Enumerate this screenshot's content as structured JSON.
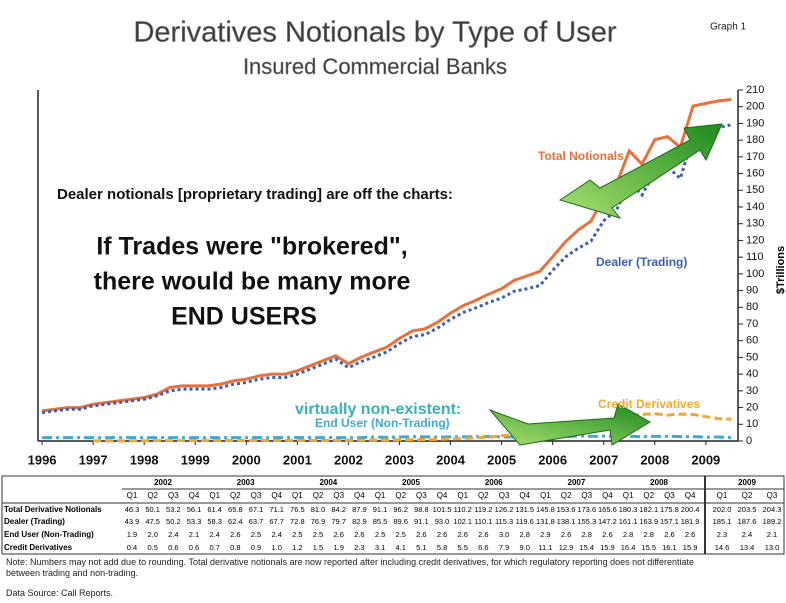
{
  "chart_data": {
    "type": "line",
    "title": "Derivatives Notionals by Type of User",
    "subtitle": "Insured Commercial Banks",
    "corner_label": "Graph 1",
    "y_label": "$Trillions",
    "annotations": [
      "Dealer notionals [proprietary trading] are off the charts:",
      "If Trades were \"brokered\",",
      "there would be many more",
      "END USERS",
      "virtually non-existent:"
    ],
    "x": [
      1996,
      1996.25,
      1996.5,
      1996.75,
      1997,
      1997.25,
      1997.5,
      1997.75,
      1998,
      1998.25,
      1998.5,
      1998.75,
      1999,
      1999.25,
      1999.5,
      1999.75,
      2000,
      2000.25,
      2000.5,
      2000.75,
      2001,
      2001.25,
      2001.5,
      2001.75,
      2002,
      2002.25,
      2002.5,
      2002.75,
      2003,
      2003.25,
      2003.5,
      2003.75,
      2004,
      2004.25,
      2004.5,
      2004.75,
      2005,
      2005.25,
      2005.5,
      2005.75,
      2006,
      2006.25,
      2006.5,
      2006.75,
      2007,
      2007.25,
      2007.5,
      2007.75,
      2008,
      2008.25,
      2008.5,
      2008.75,
      2009,
      2009.25,
      2009.5
    ],
    "series": [
      {
        "name": "Total Notionals",
        "color": "#e8703a",
        "dash": "none",
        "values": [
          18,
          19,
          20,
          20,
          22,
          23,
          24,
          25,
          26,
          28,
          32,
          33,
          33,
          33,
          34,
          36,
          37,
          39,
          40,
          40,
          42,
          45,
          48,
          51,
          46.3,
          50.1,
          53.2,
          56.1,
          61.4,
          65.8,
          67.1,
          71.1,
          76.5,
          81.0,
          84.2,
          87.9,
          91.1,
          96.2,
          98.8,
          101.5,
          110.2,
          119.2,
          126.2,
          131.5,
          145.8,
          153.6,
          173.6,
          165.6,
          180.3,
          182.1,
          175.8,
          200.4,
          202.0,
          203.5,
          204.3
        ]
      },
      {
        "name": "Dealer (Trading)",
        "color": "#3a5fb0",
        "dash": "3 3",
        "values": [
          17,
          18,
          19,
          19,
          21,
          22,
          23,
          24,
          25,
          27,
          30,
          31,
          31,
          31,
          32,
          34,
          35,
          37,
          38,
          38,
          40,
          43,
          46,
          49,
          43.9,
          47.5,
          50.2,
          53.3,
          58.3,
          62.4,
          63.7,
          67.7,
          72.8,
          76.9,
          79.7,
          82.9,
          85.5,
          89.6,
          91.1,
          93.0,
          102.1,
          110.1,
          115.3,
          119.6,
          131.8,
          138.1,
          155.3,
          147.2,
          161.1,
          163.9,
          157.1,
          181.9,
          185.1,
          187.6,
          189.2
        ]
      },
      {
        "name": "End User (Non-Trading)",
        "color": "#3fa9d6",
        "dash": "10 4 3 4",
        "values": [
          2,
          2,
          2,
          2,
          2,
          2,
          2,
          2,
          2,
          2,
          2,
          2,
          2,
          2,
          2,
          2,
          2,
          2,
          2,
          2,
          2,
          2,
          2,
          2,
          1.9,
          2.0,
          2.4,
          2.1,
          2.4,
          2.6,
          2.5,
          2.4,
          2.5,
          2.5,
          2.6,
          2.6,
          2.5,
          2.5,
          2.6,
          2.6,
          2.6,
          2.6,
          3.0,
          2.8,
          2.9,
          2.6,
          2.8,
          2.6,
          2.8,
          2.8,
          2.6,
          2.6,
          2.3,
          2.4,
          2.1
        ]
      },
      {
        "name": "Credit Derivatives",
        "color": "#f0a830",
        "dash": "8 4",
        "values": [
          null,
          null,
          null,
          null,
          0.1,
          0.1,
          0.1,
          0.1,
          0.1,
          0.2,
          0.2,
          0.2,
          0.2,
          0.2,
          0.3,
          0.3,
          0.3,
          0.3,
          0.4,
          0.4,
          0.4,
          0.4,
          0.4,
          0.4,
          0.4,
          0.5,
          0.6,
          0.6,
          0.7,
          0.8,
          0.9,
          1.0,
          1.2,
          1.5,
          1.9,
          2.3,
          3.1,
          4.1,
          5.1,
          5.8,
          5.5,
          6.6,
          7.9,
          9.0,
          11.1,
          12.9,
          15.4,
          15.9,
          16.4,
          15.5,
          16.1,
          15.9,
          14.6,
          13.4,
          13.0
        ]
      }
    ],
    "xlim": [
      1995.92,
      2009.63
    ],
    "xticks": [
      1996,
      1997,
      1998,
      1999,
      2000,
      2001,
      2002,
      2003,
      2004,
      2005,
      2006,
      2007,
      2008,
      2009
    ],
    "ylim": [
      0,
      210
    ],
    "yticks": [
      0,
      10,
      20,
      30,
      40,
      50,
      60,
      70,
      80,
      90,
      100,
      110,
      120,
      130,
      140,
      150,
      160,
      170,
      180,
      190,
      200,
      210
    ]
  },
  "table": {
    "groups": [
      {
        "year": "2002",
        "quarters": [
          "Q1",
          "Q2",
          "Q3",
          "Q4"
        ]
      },
      {
        "year": "2003",
        "quarters": [
          "Q1",
          "Q2",
          "Q3",
          "Q4"
        ]
      },
      {
        "year": "2004",
        "quarters": [
          "Q1",
          "Q2",
          "Q3",
          "Q4"
        ]
      },
      {
        "year": "2005",
        "quarters": [
          "Q1",
          "Q2",
          "Q3",
          "Q4"
        ]
      },
      {
        "year": "2006",
        "quarters": [
          "Q1",
          "Q2",
          "Q3",
          "Q4"
        ]
      },
      {
        "year": "2007",
        "quarters": [
          "Q1",
          "Q2",
          "Q3",
          "Q4"
        ]
      },
      {
        "year": "2008",
        "quarters": [
          "Q1",
          "Q2",
          "Q3",
          "Q4"
        ]
      },
      {
        "year": "2009",
        "quarters": [
          "Q1",
          "Q2",
          "Q3"
        ]
      }
    ],
    "rows": [
      {
        "label": "Total Derivative Notionals",
        "values": [
          "46.3",
          "50.1",
          "53.2",
          "56.1",
          "61.4",
          "65.8",
          "67.1",
          "71.1",
          "76.5",
          "81.0",
          "84.2",
          "87.9",
          "91.1",
          "96.2",
          "98.8",
          "101.5",
          "110.2",
          "119.2",
          "126.2",
          "131.5",
          "145.8",
          "153.6",
          "173.6",
          "165.6",
          "180.3",
          "182.1",
          "175.8",
          "200.4",
          "202.0",
          "203.5",
          "204.3"
        ]
      },
      {
        "label": "Dealer (Trading)",
        "values": [
          "43.9",
          "47.5",
          "50.2",
          "53.3",
          "58.3",
          "62.4",
          "63.7",
          "67.7",
          "72.8",
          "76.9",
          "79.7",
          "82.9",
          "85.5",
          "89.6",
          "91.1",
          "93.0",
          "102.1",
          "110.1",
          "115.3",
          "119.6",
          "131.8",
          "138.1",
          "155.3",
          "147.2",
          "161.1",
          "163.9",
          "157.1",
          "181.9",
          "185.1",
          "187.6",
          "189.2"
        ]
      },
      {
        "label": "End User (Non-Trading)",
        "values": [
          "1.9",
          "2.0",
          "2.4",
          "2.1",
          "2.4",
          "2.6",
          "2.5",
          "2.4",
          "2.5",
          "2.5",
          "2.6",
          "2.6",
          "2.5",
          "2.5",
          "2.6",
          "2.6",
          "2.6",
          "2.6",
          "3.0",
          "2.8",
          "2.9",
          "2.6",
          "2.8",
          "2.6",
          "2.8",
          "2.8",
          "2.6",
          "2.6",
          "2.3",
          "2.4",
          "2.1"
        ]
      },
      {
        "label": "Credit Derivatives",
        "values": [
          "0.4",
          "0.5",
          "0.6",
          "0.6",
          "0.7",
          "0.8",
          "0.9",
          "1.0",
          "1.2",
          "1.5",
          "1.9",
          "2.3",
          "3.1",
          "4.1",
          "5.1",
          "5.8",
          "5.5",
          "6.6",
          "7.9",
          "9.0",
          "11.1",
          "12.9",
          "15.4",
          "15.9",
          "16.4",
          "15.5",
          "16.1",
          "15.9",
          "14.6",
          "13.4",
          "13.0"
        ]
      }
    ]
  },
  "notes": {
    "note": "Note: Numbers may not add due to rounding. Total derivative notionals are now reported after including credit derivatives, for which regulatory reporting does not differentiate between trading and non-trading.",
    "source": "Data Source: Call Reports."
  }
}
